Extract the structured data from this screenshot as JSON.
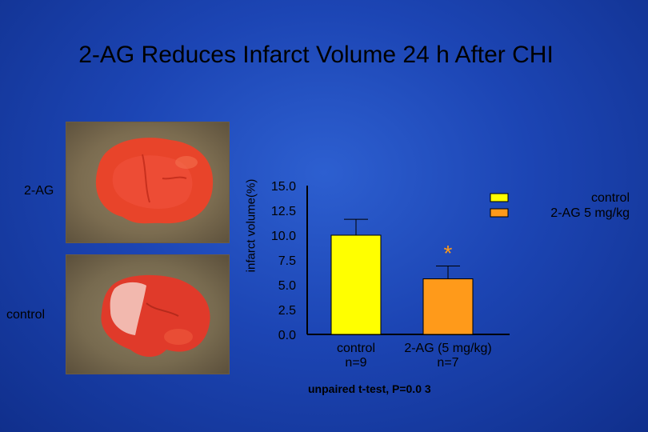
{
  "title": "2-AG Reduces Infarct Volume 24 h After CHI",
  "slice_labels": {
    "top": "2-AG",
    "bottom": "control"
  },
  "footnote": "unpaired t-test, P=0.0 3",
  "chart_data": {
    "type": "bar",
    "ylabel": "infarct volume(%)",
    "ylim": [
      0,
      15
    ],
    "yticks": [
      "15.0",
      "12.5",
      "10.0",
      "7.5",
      "5.0",
      "2.5",
      "0.0"
    ],
    "categories": [
      [
        "control",
        "n=9"
      ],
      [
        "2-AG (5 mg/kg)",
        "n=7"
      ]
    ],
    "values": [
      10.0,
      5.6
    ],
    "errors": [
      1.6,
      1.3
    ],
    "colors": [
      "#ffff00",
      "#ff9a1a"
    ],
    "legend": [
      "control",
      "2-AG 5 mg/kg"
    ],
    "legend_position": "top-right",
    "annotation": "*"
  }
}
